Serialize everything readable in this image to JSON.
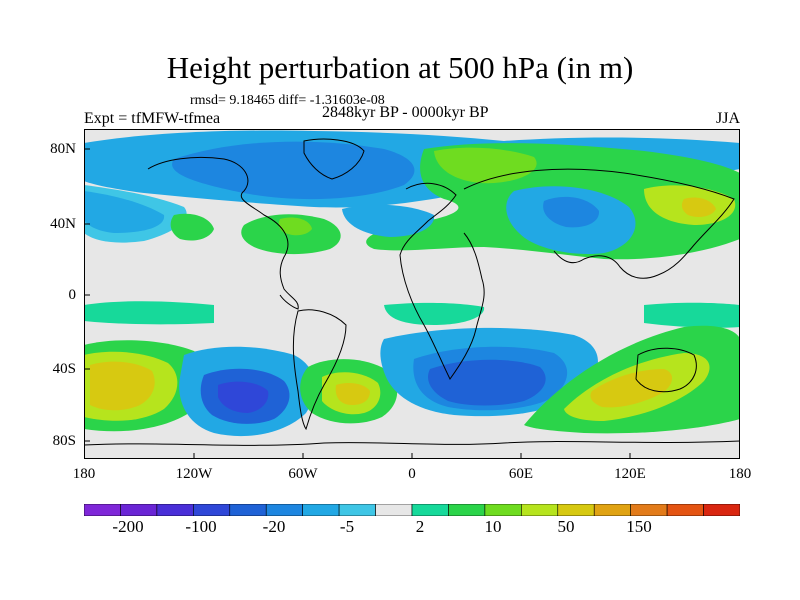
{
  "title": "Height perturbation at 500 hPa (in m)",
  "stats": "rmsd= 9.18465 diff= -1.31603e-08",
  "experiment": "Expt = tfMFW-tfmea",
  "period": "2848kyr BP - 0000kyr BP",
  "season": "JJA",
  "lat_labels": [
    "80N",
    "40N",
    "0",
    "40S",
    "80S"
  ],
  "lon_labels": [
    "180",
    "120W",
    "60W",
    "0",
    "60E",
    "120E",
    "180"
  ],
  "colorbar_labels": [
    "-200",
    "-100",
    "-20",
    "-5",
    "2",
    "10",
    "50",
    "150"
  ],
  "palette": [
    "#7f27d8",
    "#6a25d5",
    "#4a2fd8",
    "#2f47d8",
    "#1f62d6",
    "#1d86e0",
    "#22a8e4",
    "#3fc6e6",
    "#e7e7e7",
    "#17d99a",
    "#2bd44a",
    "#6fdc20",
    "#b6e41d",
    "#d7c911",
    "#e0a313",
    "#e27b1a",
    "#e45412",
    "#d92610"
  ],
  "map_colors": {
    "neutral": "#e7e7e7",
    "blue_light": "#22a8e4",
    "blue_mid": "#1d86e0",
    "blue_deep": "#1f62d6",
    "blue_darkest": "#2f47d8",
    "cyan": "#3fc6e6",
    "green_teal": "#17d99a",
    "green": "#2bd44a",
    "lime": "#6fdc20",
    "yellow_green": "#b6e41d",
    "olive": "#d7c911",
    "coastline": "#000000"
  }
}
